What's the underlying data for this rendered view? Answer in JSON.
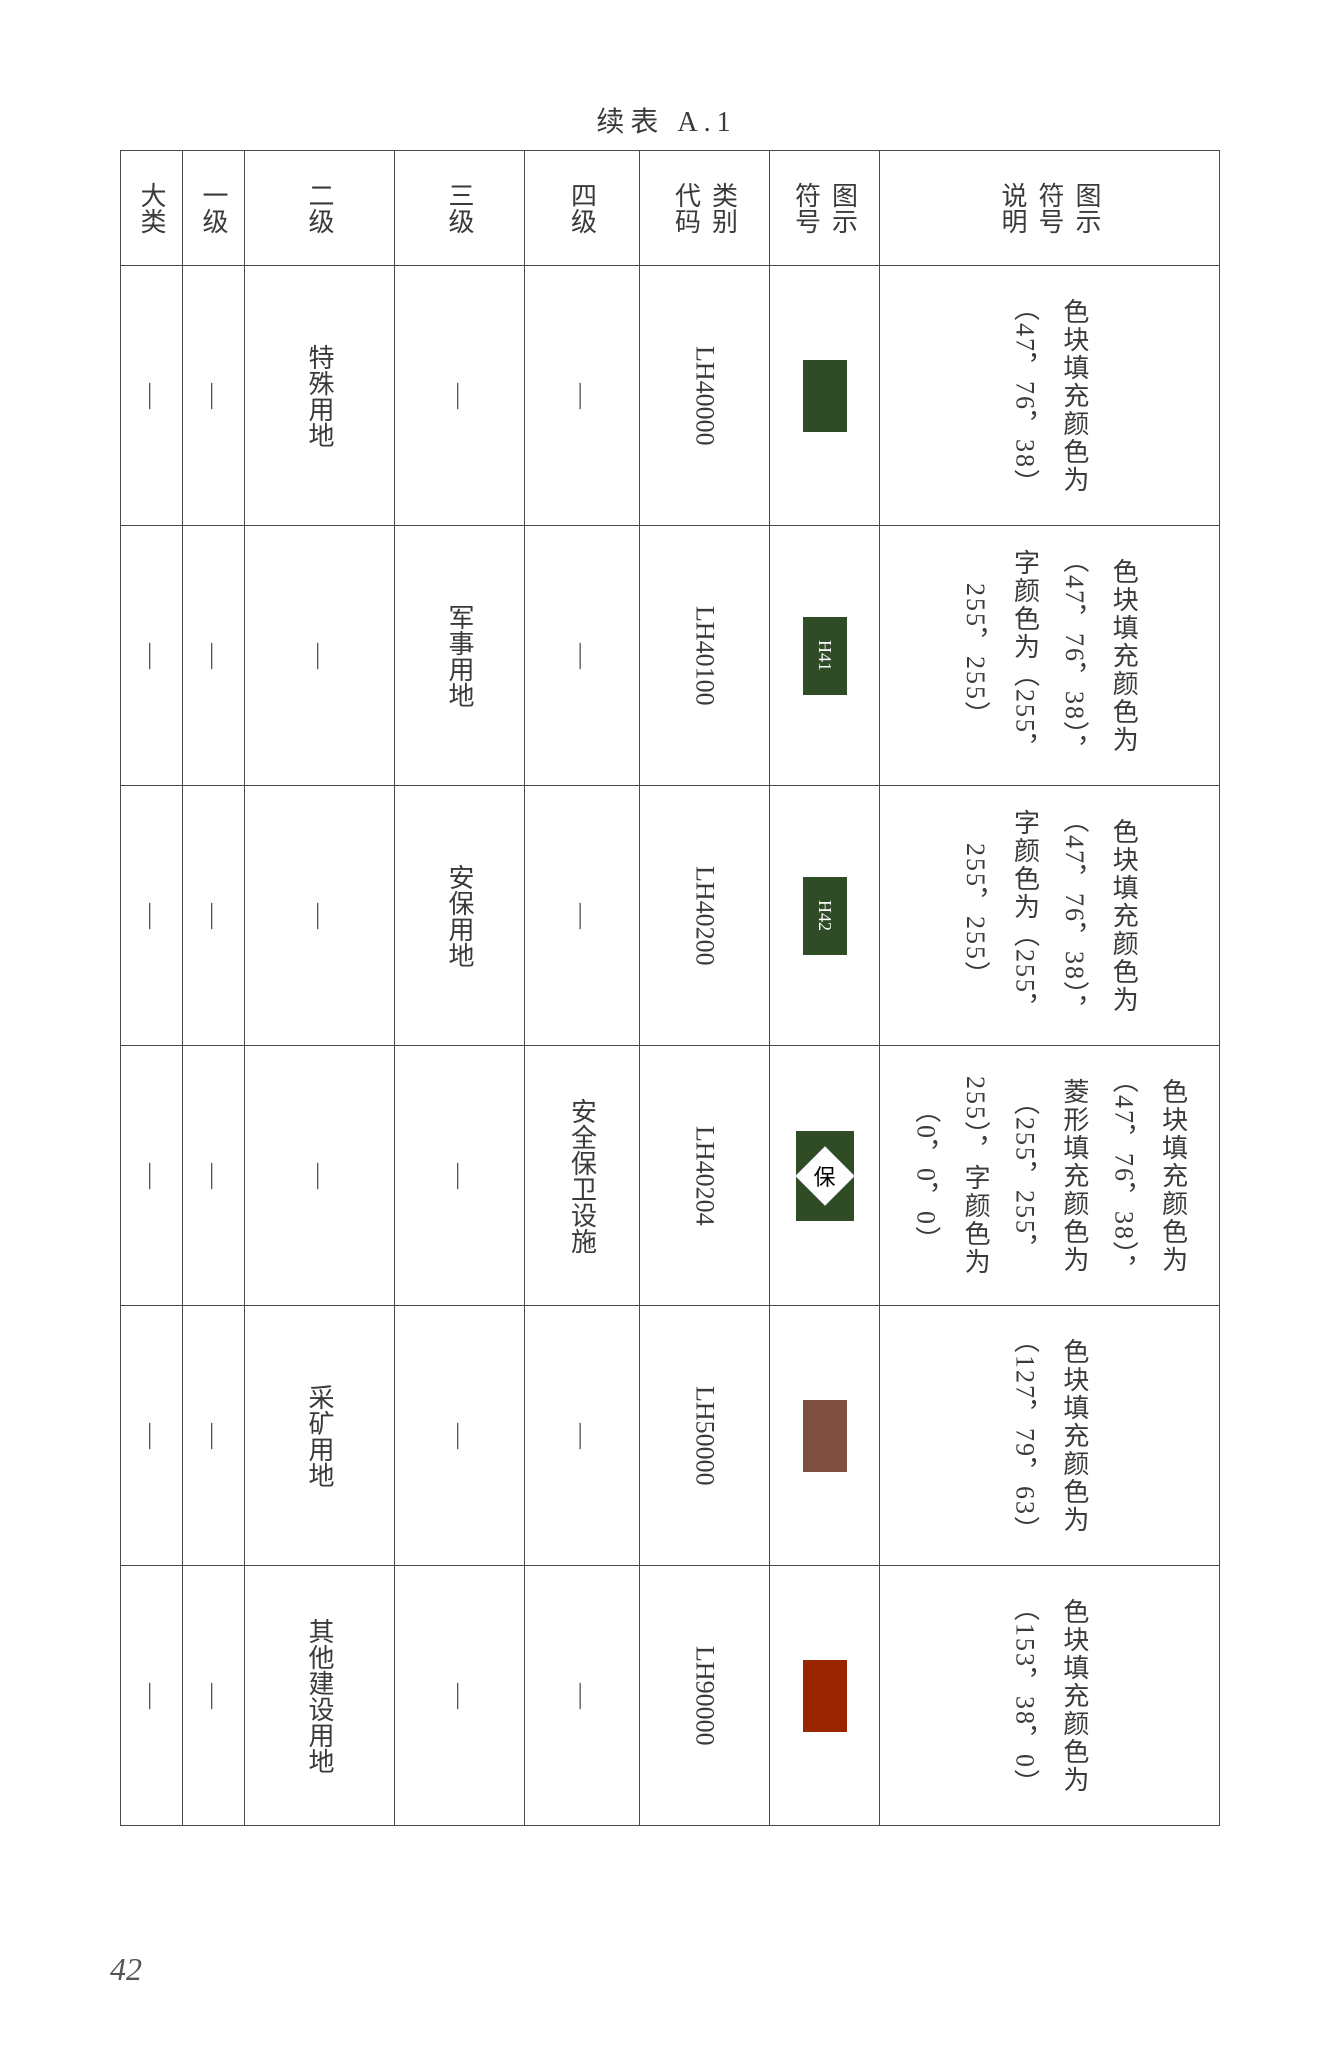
{
  "page": {
    "title": "续表 A.1",
    "number": "42",
    "background_color": "#ffffff"
  },
  "table": {
    "columns": [
      "大类",
      "一级",
      "二级",
      "三级",
      "四级",
      "类别代码",
      "图示符号",
      "图示符号说明"
    ],
    "rows": [
      {
        "daclass": "—",
        "l1": "—",
        "l2": "特殊用地",
        "l3": "—",
        "l4": "—",
        "code": "LH40000",
        "symbol": {
          "type": "swatch",
          "fill": "#2f4c26"
        },
        "desc": "色块填充颜色为（47，76，38）"
      },
      {
        "daclass": "—",
        "l1": "—",
        "l2": "—",
        "l3": "军事用地",
        "l4": "—",
        "code": "LH40100",
        "symbol": {
          "type": "swatch-label",
          "fill": "#2f4c26",
          "text_color": "#ffffff",
          "label": "H41"
        },
        "desc": "色块填充颜色为（47，76，38），字颜色为（255，255，255）"
      },
      {
        "daclass": "—",
        "l1": "—",
        "l2": "—",
        "l3": "安保用地",
        "l4": "—",
        "code": "LH40200",
        "symbol": {
          "type": "swatch-label",
          "fill": "#2f4c26",
          "text_color": "#ffffff",
          "label": "H42"
        },
        "desc": "色块填充颜色为（47，76，38），字颜色为（255，255，255）"
      },
      {
        "daclass": "—",
        "l1": "—",
        "l2": "—",
        "l3": "—",
        "l4": "安全保卫设施",
        "code": "LH40204",
        "symbol": {
          "type": "diamond",
          "fill": "#2f4c26",
          "diamond_fill": "#ffffff",
          "text_color": "#000000",
          "label": "保"
        },
        "desc": "色块填充颜色为（47，76，38），菱形填充颜色为（255，255，255），字颜色为（0，0，0）"
      },
      {
        "daclass": "—",
        "l1": "—",
        "l2": "采矿用地",
        "l3": "—",
        "l4": "—",
        "code": "LH50000",
        "symbol": {
          "type": "swatch",
          "fill": "#7f4f3f"
        },
        "desc": "色块填充颜色为（127，79，63）"
      },
      {
        "daclass": "—",
        "l1": "—",
        "l2": "其他建设用地",
        "l3": "—",
        "l4": "—",
        "code": "LH90000",
        "symbol": {
          "type": "swatch",
          "fill": "#992600"
        },
        "desc": "色块填充颜色为（153，38，0）"
      }
    ],
    "border_color": "#4a4a4a",
    "font_size": 26,
    "text_color": "#3a3a3a",
    "cell_writing_mode": "vertical-rl"
  }
}
